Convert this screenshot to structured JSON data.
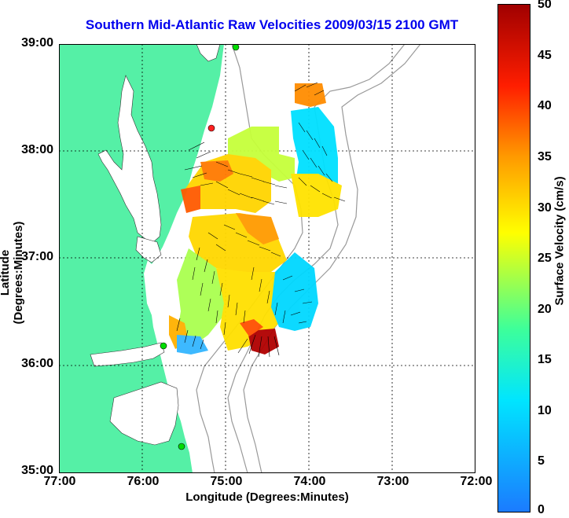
{
  "title": "Southern Mid-Atlantic Raw Velocities 2009/03/15 2100 GMT",
  "xlabel": "Longitude (Degrees:Minutes)",
  "ylabel": "Latitude (Degrees:Minutes)",
  "colorbar_label": "Surface Velocity (cm/s)",
  "colors": {
    "land": "#55f0a6",
    "water": "#ffffff",
    "title": "#0000ee",
    "isobath": "#999999",
    "arrow": "#000000"
  },
  "chart_data": {
    "type": "map",
    "xticks": [
      "77:00",
      "76:00",
      "75:00",
      "74:00",
      "73:00",
      "72:00"
    ],
    "yticks": [
      "39:00",
      "38:00",
      "37:00",
      "36:00",
      "35:00"
    ],
    "colorbar_ticks": [
      "50",
      "45",
      "40",
      "35",
      "30",
      "25",
      "20",
      "15",
      "10",
      "5",
      "0"
    ],
    "colorbar_range": [
      0,
      50
    ],
    "xlim": [
      -77,
      -72
    ],
    "ylim": [
      35,
      39
    ],
    "grid": true
  }
}
